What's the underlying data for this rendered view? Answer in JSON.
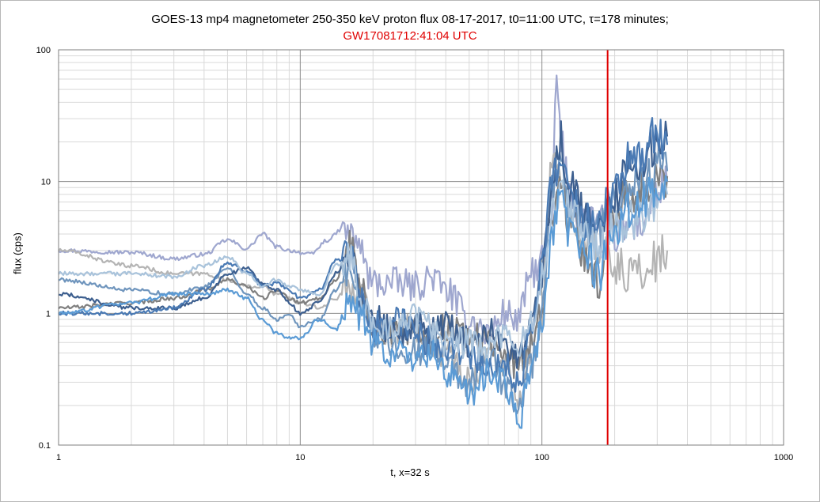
{
  "chart_data": {
    "type": "line",
    "title": "GOES-13 mp4 magnetometer 250-350 keV proton flux  08-17-2017,  t0=11:00 UTC,   τ=178 minutes;",
    "subtitle": "GW17081712:41:04 UTC",
    "xlabel": "t, x=32  s",
    "ylabel": "flux  (cps)",
    "x_scale": "log",
    "y_scale": "log",
    "xlim": [
      1,
      1000
    ],
    "ylim": [
      0.1,
      100
    ],
    "x_ticks": [
      "1",
      "10",
      "100",
      "1000"
    ],
    "y_ticks": [
      "0.1",
      "1",
      "10",
      "100"
    ],
    "grid": true,
    "legend": "none",
    "vertical_marker": {
      "x": 187,
      "color": "#e00000"
    },
    "series": [
      {
        "color": "#9fa7cf",
        "anchors": [
          [
            1,
            3.0
          ],
          [
            2,
            2.9
          ],
          [
            3,
            2.6
          ],
          [
            4,
            2.8
          ],
          [
            5,
            3.6
          ],
          [
            6,
            3.1
          ],
          [
            7,
            4.0
          ],
          [
            8,
            3.2
          ],
          [
            9,
            3.0
          ],
          [
            11,
            2.8
          ],
          [
            13,
            3.6
          ],
          [
            15,
            4.4
          ],
          [
            17,
            3.6
          ],
          [
            20,
            1.7
          ],
          [
            25,
            1.7
          ],
          [
            30,
            1.6
          ],
          [
            35,
            1.9
          ],
          [
            40,
            1.5
          ],
          [
            50,
            0.9
          ],
          [
            60,
            0.7
          ],
          [
            70,
            1.0
          ],
          [
            80,
            0.9
          ],
          [
            90,
            2.0
          ],
          [
            100,
            2.4
          ],
          [
            110,
            5.0
          ],
          [
            115,
            65
          ],
          [
            120,
            18
          ],
          [
            130,
            9
          ],
          [
            140,
            6
          ],
          [
            160,
            5
          ],
          [
            180,
            5
          ],
          [
            200,
            4
          ],
          [
            230,
            4.5
          ],
          [
            260,
            5
          ],
          [
            300,
            8
          ],
          [
            330,
            10
          ]
        ]
      },
      {
        "color": "#b4b4b4",
        "anchors": [
          [
            1,
            3.0
          ],
          [
            2,
            2.3
          ],
          [
            3,
            2.0
          ],
          [
            4,
            2.0
          ],
          [
            5,
            1.8
          ],
          [
            6,
            1.6
          ],
          [
            7,
            1.6
          ],
          [
            8,
            1.4
          ],
          [
            9,
            1.3
          ],
          [
            10,
            1.2
          ],
          [
            12,
            1.1
          ],
          [
            14,
            1.3
          ],
          [
            16,
            1.6
          ],
          [
            18,
            1.5
          ],
          [
            20,
            0.8
          ],
          [
            25,
            0.7
          ],
          [
            30,
            0.8
          ],
          [
            35,
            0.6
          ],
          [
            40,
            0.5
          ],
          [
            50,
            0.3
          ],
          [
            60,
            0.5
          ],
          [
            70,
            0.4
          ],
          [
            80,
            0.2
          ],
          [
            90,
            0.5
          ],
          [
            100,
            1.1
          ],
          [
            110,
            12
          ],
          [
            120,
            11
          ],
          [
            130,
            7
          ],
          [
            150,
            4
          ],
          [
            170,
            3
          ],
          [
            190,
            2.6
          ],
          [
            200,
            2.3
          ],
          [
            230,
            2.0
          ],
          [
            260,
            2.1
          ],
          [
            300,
            2.5
          ],
          [
            330,
            3.0
          ]
        ]
      },
      {
        "color": "#7f7f7f",
        "anchors": [
          [
            1,
            1.1
          ],
          [
            2,
            1.2
          ],
          [
            3,
            1.3
          ],
          [
            4,
            1.5
          ],
          [
            5,
            1.8
          ],
          [
            6,
            1.6
          ],
          [
            7,
            1.3
          ],
          [
            8,
            1.5
          ],
          [
            9,
            1.3
          ],
          [
            10,
            1.2
          ],
          [
            12,
            1.3
          ],
          [
            14,
            1.8
          ],
          [
            16,
            3.3
          ],
          [
            18,
            1.5
          ],
          [
            20,
            0.8
          ],
          [
            25,
            0.7
          ],
          [
            30,
            0.8
          ],
          [
            35,
            0.6
          ],
          [
            40,
            0.8
          ],
          [
            50,
            0.7
          ],
          [
            60,
            0.6
          ],
          [
            70,
            0.5
          ],
          [
            80,
            0.4
          ],
          [
            90,
            0.6
          ],
          [
            100,
            1.2
          ],
          [
            110,
            6
          ],
          [
            120,
            9
          ],
          [
            130,
            5
          ],
          [
            150,
            3
          ],
          [
            170,
            1.7
          ],
          [
            190,
            4
          ],
          [
            200,
            6
          ],
          [
            230,
            8
          ],
          [
            260,
            9
          ],
          [
            300,
            10
          ],
          [
            330,
            11
          ]
        ]
      },
      {
        "color": "#6f95bd",
        "anchors": [
          [
            1,
            1.8
          ],
          [
            2,
            1.5
          ],
          [
            3,
            1.4
          ],
          [
            4,
            1.6
          ],
          [
            5,
            2.2
          ],
          [
            6,
            1.4
          ],
          [
            7,
            1.1
          ],
          [
            8,
            0.9
          ],
          [
            9,
            1.0
          ],
          [
            10,
            0.8
          ],
          [
            12,
            0.9
          ],
          [
            14,
            1.5
          ],
          [
            16,
            2.2
          ],
          [
            18,
            1.1
          ],
          [
            20,
            0.7
          ],
          [
            25,
            0.6
          ],
          [
            30,
            0.5
          ],
          [
            35,
            0.6
          ],
          [
            40,
            0.4
          ],
          [
            50,
            0.3
          ],
          [
            60,
            0.5
          ],
          [
            70,
            0.3
          ],
          [
            80,
            0.2
          ],
          [
            90,
            0.4
          ],
          [
            100,
            0.9
          ],
          [
            110,
            8
          ],
          [
            120,
            12
          ],
          [
            130,
            6
          ],
          [
            150,
            5
          ],
          [
            170,
            4
          ],
          [
            190,
            6
          ],
          [
            200,
            7
          ],
          [
            230,
            9
          ],
          [
            260,
            10
          ],
          [
            300,
            13
          ],
          [
            330,
            12
          ]
        ]
      },
      {
        "color": "#3d5f8f",
        "anchors": [
          [
            1,
            1.4
          ],
          [
            2,
            1.1
          ],
          [
            3,
            1.1
          ],
          [
            4,
            1.3
          ],
          [
            5,
            2.0
          ],
          [
            6,
            2.2
          ],
          [
            7,
            1.7
          ],
          [
            8,
            1.5
          ],
          [
            9,
            1.2
          ],
          [
            10,
            1.0
          ],
          [
            12,
            1.2
          ],
          [
            14,
            2.0
          ],
          [
            16,
            3.0
          ],
          [
            18,
            1.4
          ],
          [
            20,
            0.9
          ],
          [
            25,
            0.7
          ],
          [
            30,
            0.8
          ],
          [
            35,
            0.7
          ],
          [
            40,
            0.8
          ],
          [
            50,
            0.6
          ],
          [
            60,
            0.7
          ],
          [
            70,
            0.6
          ],
          [
            80,
            0.5
          ],
          [
            90,
            0.8
          ],
          [
            100,
            2.0
          ],
          [
            110,
            9
          ],
          [
            120,
            20
          ],
          [
            130,
            9
          ],
          [
            150,
            6
          ],
          [
            170,
            4
          ],
          [
            190,
            6
          ],
          [
            200,
            8
          ],
          [
            230,
            12
          ],
          [
            260,
            15
          ],
          [
            300,
            20
          ],
          [
            330,
            22
          ]
        ]
      },
      {
        "color": "#4a7ab4",
        "anchors": [
          [
            1,
            1.0
          ],
          [
            2,
            1.0
          ],
          [
            3,
            1.1
          ],
          [
            4,
            1.5
          ],
          [
            5,
            2.4
          ],
          [
            6,
            2.1
          ],
          [
            7,
            1.6
          ],
          [
            8,
            1.7
          ],
          [
            9,
            1.5
          ],
          [
            10,
            1.3
          ],
          [
            12,
            1.5
          ],
          [
            14,
            2.5
          ],
          [
            16,
            2.8
          ],
          [
            18,
            1.2
          ],
          [
            20,
            0.8
          ],
          [
            25,
            0.9
          ],
          [
            30,
            0.7
          ],
          [
            35,
            0.6
          ],
          [
            40,
            0.5
          ],
          [
            50,
            0.5
          ],
          [
            60,
            0.4
          ],
          [
            70,
            0.4
          ],
          [
            80,
            0.3
          ],
          [
            90,
            0.7
          ],
          [
            100,
            2.5
          ],
          [
            110,
            10
          ],
          [
            120,
            16
          ],
          [
            130,
            8
          ],
          [
            150,
            5
          ],
          [
            170,
            5
          ],
          [
            190,
            7
          ],
          [
            200,
            9
          ],
          [
            230,
            14
          ],
          [
            260,
            17
          ],
          [
            300,
            24
          ],
          [
            330,
            19
          ]
        ]
      },
      {
        "color": "#a9c3db",
        "anchors": [
          [
            1,
            2.0
          ],
          [
            2,
            2.0
          ],
          [
            3,
            1.9
          ],
          [
            4,
            2.3
          ],
          [
            5,
            2.7
          ],
          [
            6,
            2.0
          ],
          [
            7,
            1.6
          ],
          [
            8,
            1.8
          ],
          [
            9,
            1.6
          ],
          [
            10,
            1.5
          ],
          [
            12,
            1.4
          ],
          [
            14,
            2.3
          ],
          [
            16,
            2.7
          ],
          [
            18,
            1.2
          ],
          [
            20,
            0.8
          ],
          [
            25,
            0.8
          ],
          [
            30,
            0.9
          ],
          [
            35,
            0.8
          ],
          [
            40,
            0.6
          ],
          [
            50,
            0.6
          ],
          [
            60,
            0.5
          ],
          [
            70,
            0.7
          ],
          [
            80,
            0.5
          ],
          [
            90,
            0.9
          ],
          [
            100,
            1.7
          ],
          [
            110,
            5
          ],
          [
            120,
            10
          ],
          [
            130,
            6
          ],
          [
            150,
            4
          ],
          [
            170,
            3
          ],
          [
            190,
            4
          ],
          [
            200,
            5
          ],
          [
            230,
            5
          ],
          [
            260,
            6
          ],
          [
            300,
            7
          ],
          [
            330,
            8
          ]
        ]
      },
      {
        "color": "#5b9bd5",
        "anchors": [
          [
            1,
            1.0
          ],
          [
            2,
            1.2
          ],
          [
            3,
            1.4
          ],
          [
            4,
            1.4
          ],
          [
            5,
            1.5
          ],
          [
            6,
            1.3
          ],
          [
            7,
            0.9
          ],
          [
            8,
            0.7
          ],
          [
            9,
            0.65
          ],
          [
            10,
            0.65
          ],
          [
            12,
            0.9
          ],
          [
            14,
            0.75
          ],
          [
            16,
            1.3
          ],
          [
            18,
            0.9
          ],
          [
            20,
            0.6
          ],
          [
            25,
            0.5
          ],
          [
            30,
            0.45
          ],
          [
            35,
            0.5
          ],
          [
            40,
            0.35
          ],
          [
            50,
            0.25
          ],
          [
            60,
            0.35
          ],
          [
            70,
            0.3
          ],
          [
            80,
            0.15
          ],
          [
            90,
            0.35
          ],
          [
            100,
            0.8
          ],
          [
            110,
            4
          ],
          [
            120,
            7
          ],
          [
            130,
            4
          ],
          [
            150,
            3
          ],
          [
            170,
            2
          ],
          [
            190,
            3
          ],
          [
            200,
            4
          ],
          [
            230,
            6
          ],
          [
            260,
            7
          ],
          [
            300,
            9
          ],
          [
            330,
            10
          ]
        ]
      }
    ]
  }
}
